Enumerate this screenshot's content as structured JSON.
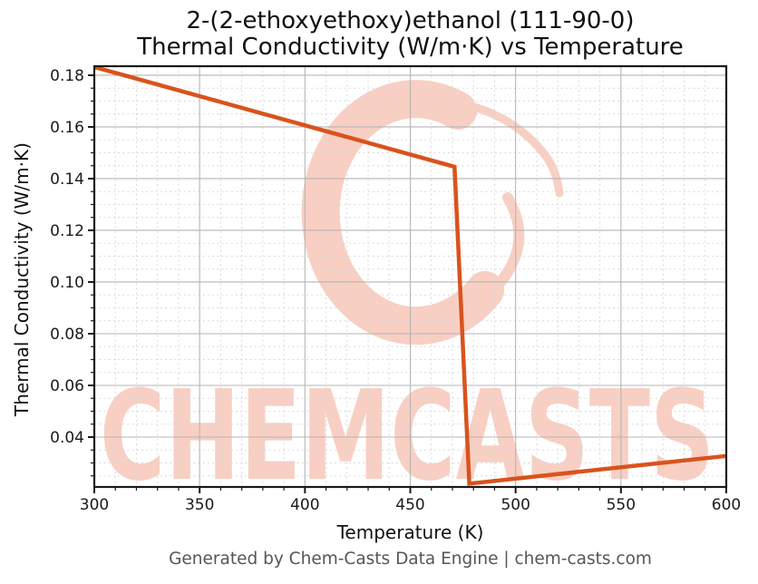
{
  "figure": {
    "title_line1": "2-(2-ethoxyethoxy)ethanol (111-90-0)",
    "title_line2": "Thermal Conductivity (W/m·K) vs Temperature",
    "footer": "Generated by Chem-Casts Data Engine | chem-casts.com"
  },
  "watermark": {
    "text": "CHEMCASTS",
    "color": "#f8cfc2"
  },
  "chart_data": {
    "type": "line",
    "title": "2-(2-ethoxyethoxy)ethanol (111-90-0) — Thermal Conductivity (W/m·K) vs Temperature",
    "xlabel": "Temperature (K)",
    "ylabel": "Thermal Conductivity (W/m·K)",
    "xlim": [
      300,
      600
    ],
    "ylim": [
      0.0207,
      0.1835
    ],
    "x_major_ticks": [
      300,
      350,
      400,
      450,
      500,
      550,
      600
    ],
    "y_major_ticks": [
      0.04,
      0.06,
      0.08,
      0.1,
      0.12,
      0.14,
      0.16,
      0.18
    ],
    "x_minor_step": 10,
    "y_minor_step": 0.005,
    "grid": true,
    "legend": false,
    "line_color": "#d9531d",
    "axis_color": "#1a1a1a",
    "major_grid_color": "#b5b5b5",
    "minor_grid_color": "#d9d9d9",
    "series": [
      {
        "name": "thermal_conductivity",
        "points": [
          [
            300,
            0.1832
          ],
          [
            471,
            0.1446
          ],
          [
            478,
            0.022
          ],
          [
            600,
            0.0327
          ]
        ]
      }
    ]
  }
}
